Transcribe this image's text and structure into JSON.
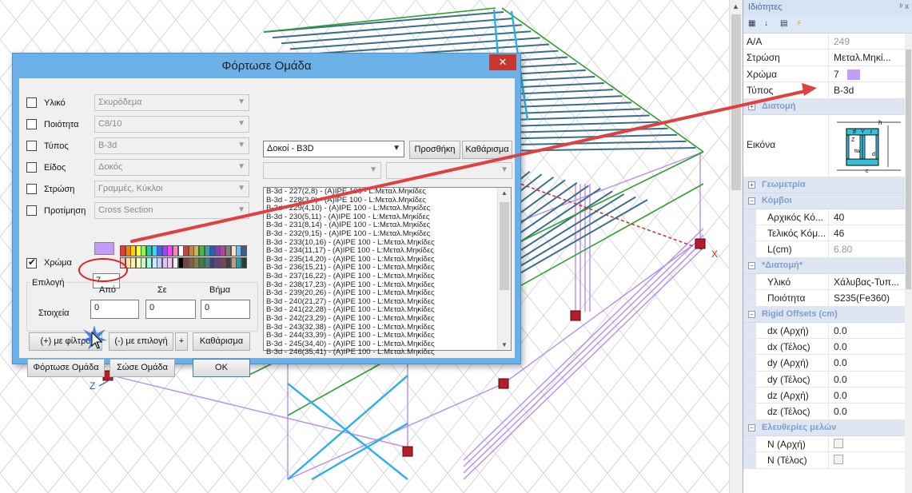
{
  "properties": {
    "title": "Ιδιότητες",
    "pin": "ᵖ x",
    "rows_top": [
      {
        "key": "A/A",
        "value": "249",
        "gray": true
      },
      {
        "key": "Στρώση",
        "value": "Μεταλ.Μηκί..."
      },
      {
        "key": "Χρώμα",
        "value": "7"
      },
      {
        "key": "Τύπος",
        "value": "B-3d"
      }
    ],
    "cat_section": "Διατομή",
    "image_label": "Εικόνα",
    "cat_geometry": "Γεωμετρία",
    "cat_nodes": "Κόμβοι",
    "nodes": [
      {
        "key": "Αρχικός Κό...",
        "value": "40"
      },
      {
        "key": "Τελικός Κόμ...",
        "value": "46"
      },
      {
        "key": "L(cm)",
        "value": "6.80",
        "gray": true
      }
    ],
    "cat_section2": "*Διατομή*",
    "section2": [
      {
        "key": "Υλικό",
        "value": "Χάλυβας-Τυπ..."
      },
      {
        "key": "Ποιότητα",
        "value": "S235(Fe360)"
      }
    ],
    "cat_rigid": "Rigid Offsets (cm)",
    "rigid": [
      {
        "key": "dx (Αρχή)",
        "value": "0.0"
      },
      {
        "key": "dx (Τέλος)",
        "value": "0.0"
      },
      {
        "key": "dy (Αρχή)",
        "value": "0.0"
      },
      {
        "key": "dy (Τέλος)",
        "value": "0.0"
      },
      {
        "key": "dz (Αρχή)",
        "value": "0.0"
      },
      {
        "key": "dz (Τέλος)",
        "value": "0.0"
      }
    ],
    "cat_release": "Ελευθερίες μελών",
    "release": [
      {
        "key": "N (Αρχή)"
      },
      {
        "key": "N (Τέλος)"
      }
    ],
    "swatch_color": "#c49cfb"
  },
  "section_diagram_labels": {
    "h": "h",
    "tf": "tf",
    "Z": "Z",
    "Y": "Y",
    "r": "r",
    "tw": "tw",
    "d": "d",
    "c": "c"
  },
  "viewport": {
    "axis_x": "X",
    "axis_z": "Z"
  },
  "dialog": {
    "title": "Φόρτωσε Ομάδα",
    "close": "✕",
    "rows": [
      {
        "label": "Υλικό",
        "value": "Σκυρόδεμα"
      },
      {
        "label": "Ποιότητα",
        "value": "C8/10"
      },
      {
        "label": "Τύπος",
        "value": "B-3d"
      },
      {
        "label": "Είδος",
        "value": "Δοκός"
      },
      {
        "label": "Στρώση",
        "value": "Γραμμές, Κύκλοι"
      },
      {
        "label": "Προτίμηση",
        "value": "Cross Section"
      }
    ],
    "color_label": "Χρώμα",
    "color_value": "7",
    "right_combo": "Δοκοί - B3D",
    "add_button": "Προσθήκη",
    "clear_button_top": "Καθάρισμα",
    "selection_label": "Επιλογή",
    "from_label": "Από",
    "to_label": "Σε",
    "step_label": "Βήμα",
    "elements_label": "Στοιχεία",
    "from_value": "0",
    "to_value": "0",
    "step_value": "0",
    "btn_plus_filter": "(+) με φίλτρο",
    "btn_minus_select": "(-) με επιλογή",
    "btn_plus": "+",
    "btn_clear": "Καθάρισμα",
    "btn_load_group": "Φόρτωσε Ομάδα",
    "btn_save_group": "Σώσε Ομάδα",
    "btn_ok": "OK",
    "list_items": [
      "B-3d - 227(2,8) - (A)IPE 100 - L:Μεταλ.Μηκίδες",
      "B-3d - 228(3,9) - (A)IPE 100 - L:Μεταλ.Μηκίδες",
      "B-3d - 229(4,10) - (A)IPE 100 - L:Μεταλ.Μηκίδες",
      "B-3d - 230(5,11) - (A)IPE 100 - L:Μεταλ.Μηκίδες",
      "B-3d - 231(8,14) - (A)IPE 100 - L:Μεταλ.Μηκίδες",
      "B-3d - 232(9,15) - (A)IPE 100 - L:Μεταλ.Μηκίδες",
      "B-3d - 233(10,16) - (A)IPE 100 - L:Μεταλ.Μηκίδες",
      "B-3d - 234(11,17) - (A)IPE 100 - L:Μεταλ.Μηκίδες",
      "B-3d - 235(14,20) - (A)IPE 100 - L:Μεταλ.Μηκίδες",
      "B-3d - 236(15,21) - (A)IPE 100 - L:Μεταλ.Μηκίδες",
      "B-3d - 237(16,22) - (A)IPE 100 - L:Μεταλ.Μηκίδες",
      "B-3d - 238(17,23) - (A)IPE 100 - L:Μεταλ.Μηκίδες",
      "B-3d - 239(20,26) - (A)IPE 100 - L:Μεταλ.Μηκίδες",
      "B-3d - 240(21,27) - (A)IPE 100 - L:Μεταλ.Μηκίδες",
      "B-3d - 241(22,28) - (A)IPE 100 - L:Μεταλ.Μηκίδες",
      "B-3d - 242(23,29) - (A)IPE 100 - L:Μεταλ.Μηκίδες",
      "B-3d - 243(32,38) - (A)IPE 100 - L:Μεταλ.Μηκίδες",
      "B-3d - 244(33,39) - (A)IPE 100 - L:Μεταλ.Μηκίδες",
      "B-3d - 245(34,40) - (A)IPE 100 - L:Μεταλ.Μηκίδες",
      "B-3d - 246(35,41) - (A)IPE 100 - L:Μεταλ.Μηκίδες"
    ]
  }
}
